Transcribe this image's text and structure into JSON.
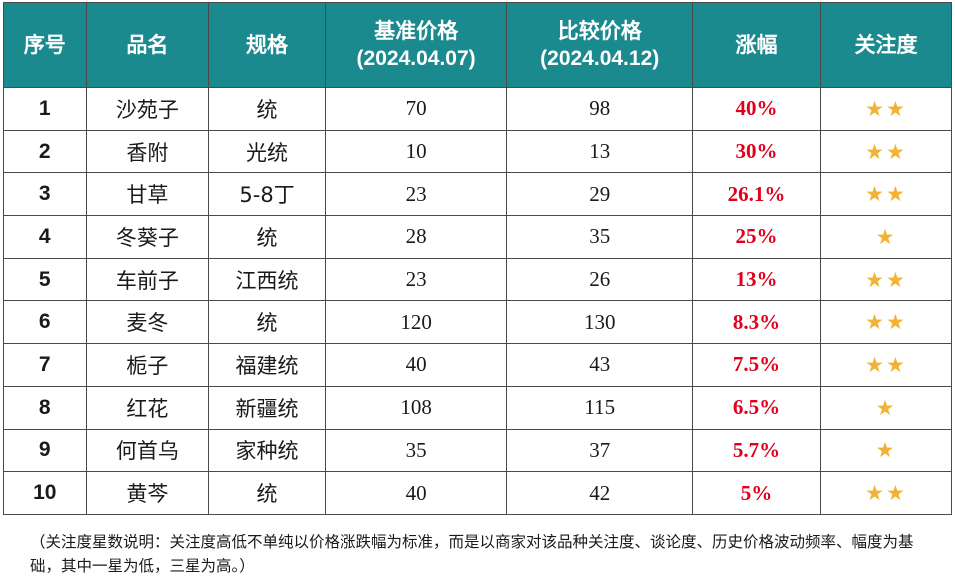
{
  "header": {
    "no": "序号",
    "name": "品名",
    "spec": "规格",
    "base_price_title": "基准价格",
    "base_price_date": "(2024.04.07)",
    "compare_price_title": "比较价格",
    "compare_price_date": "(2024.04.12)",
    "change": "涨幅",
    "attention": "关注度"
  },
  "rows": [
    {
      "no": "1",
      "name": "沙苑子",
      "spec": "统",
      "base": "70",
      "compare": "98",
      "change": "40%",
      "stars": "★★"
    },
    {
      "no": "2",
      "name": "香附",
      "spec": "光统",
      "base": "10",
      "compare": "13",
      "change": "30%",
      "stars": "★★"
    },
    {
      "no": "3",
      "name": "甘草",
      "spec": "5-8丁",
      "base": "23",
      "compare": "29",
      "change": "26.1%",
      "stars": "★★"
    },
    {
      "no": "4",
      "name": "冬葵子",
      "spec": "统",
      "base": "28",
      "compare": "35",
      "change": "25%",
      "stars": "★"
    },
    {
      "no": "5",
      "name": "车前子",
      "spec": "江西统",
      "base": "23",
      "compare": "26",
      "change": "13%",
      "stars": "★★"
    },
    {
      "no": "6",
      "name": "麦冬",
      "spec": "统",
      "base": "120",
      "compare": "130",
      "change": "8.3%",
      "stars": "★★"
    },
    {
      "no": "7",
      "name": "栀子",
      "spec": "福建统",
      "base": "40",
      "compare": "43",
      "change": "7.5%",
      "stars": "★★"
    },
    {
      "no": "8",
      "name": "红花",
      "spec": "新疆统",
      "base": "108",
      "compare": "115",
      "change": "6.5%",
      "stars": "★"
    },
    {
      "no": "9",
      "name": "何首乌",
      "spec": "家种统",
      "base": "35",
      "compare": "37",
      "change": "5.7%",
      "stars": "★"
    },
    {
      "no": "10",
      "name": "黄芩",
      "spec": "统",
      "base": "40",
      "compare": "42",
      "change": "5%",
      "stars": "★★"
    }
  ],
  "note": "（关注度星数说明：关注度高低不单纯以价格涨跌幅为标准，而是以商家对该品种关注度、谈论度、历史价格波动频率、幅度为基础，其中一星为低，三星为高。）",
  "colors": {
    "header_bg": "#1b8a8f",
    "change_red": "#e0001b",
    "star_gold": "#f2b233"
  }
}
